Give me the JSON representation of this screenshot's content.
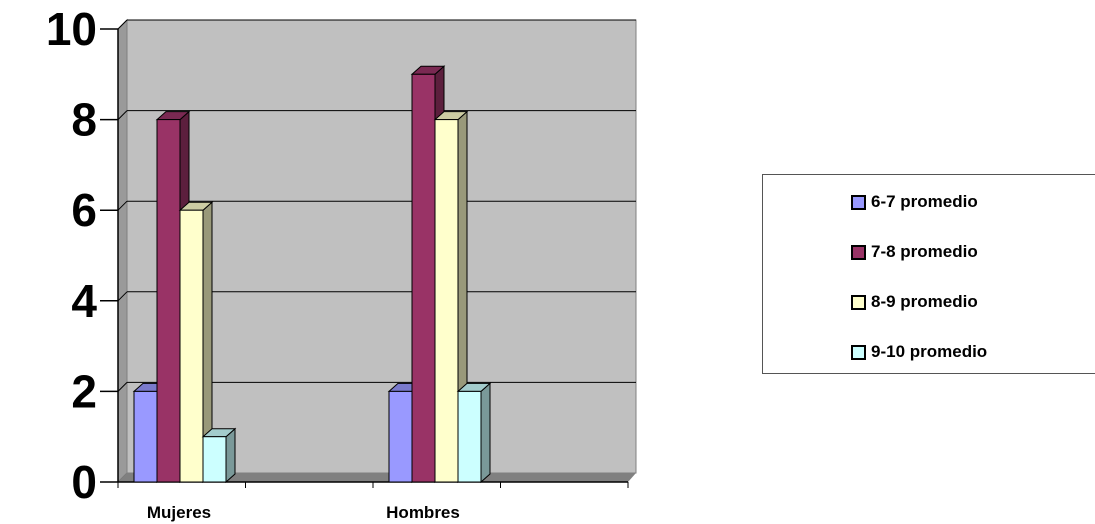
{
  "chart_data": {
    "type": "bar",
    "categories": [
      "Mujeres",
      "Hombres"
    ],
    "series": [
      {
        "name": "6-7 promedio",
        "values": [
          2,
          2
        ],
        "color": "#9999ff"
      },
      {
        "name": "7-8 promedio",
        "values": [
          8,
          9
        ],
        "color": "#993366"
      },
      {
        "name": "8-9 promedio",
        "values": [
          6,
          8
        ],
        "color": "#ffffcc"
      },
      {
        "name": "9-10 promedio",
        "values": [
          1,
          2
        ],
        "color": "#ccffff"
      }
    ],
    "yticks": [
      "0",
      "2",
      "4",
      "6",
      "8",
      "10"
    ],
    "ylim": [
      0,
      10
    ],
    "grid": true,
    "legend_position": "right",
    "plot_background": "#c0c0c0"
  }
}
